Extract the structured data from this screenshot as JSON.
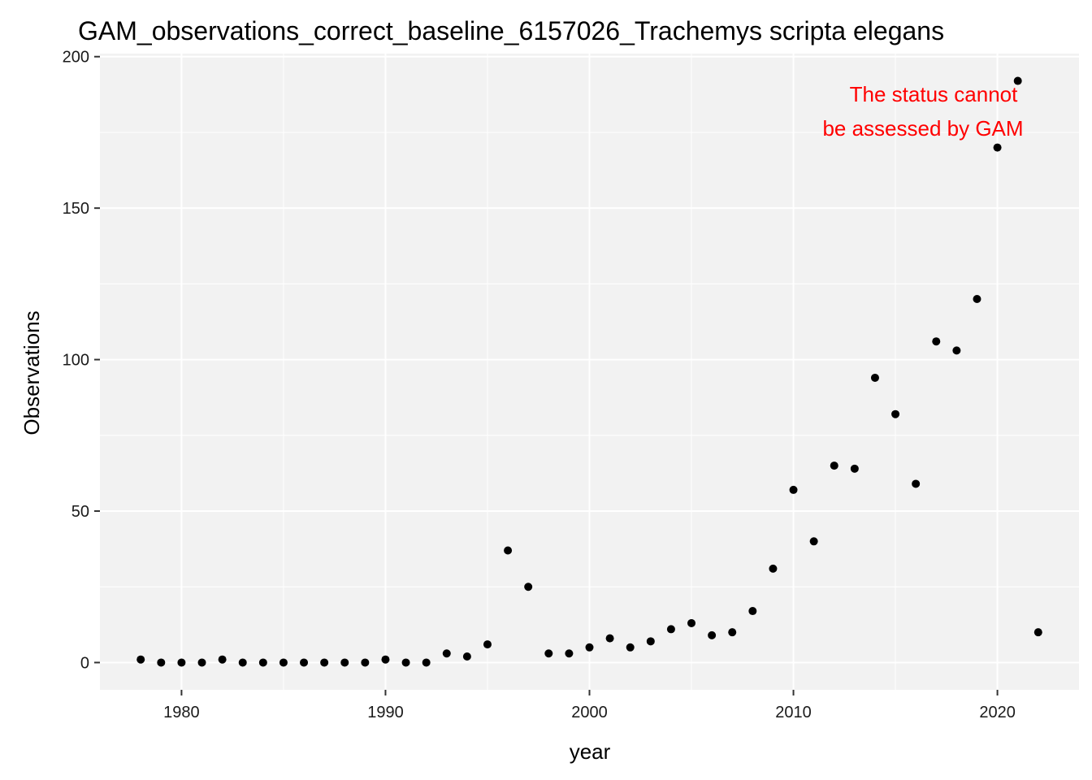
{
  "chart_data": {
    "type": "scatter",
    "title": "GAM_observations_correct_baseline_6157026_Trachemys scripta elegans",
    "xlabel": "year",
    "ylabel": "Observations",
    "xlim": [
      1976,
      2024
    ],
    "ylim": [
      -9,
      201
    ],
    "x_ticks": [
      1980,
      1990,
      2000,
      2010,
      2020
    ],
    "y_ticks": [
      0,
      50,
      100,
      150,
      200
    ],
    "x_tick_labels": [
      "1980",
      "1990",
      "2000",
      "2010",
      "2020"
    ],
    "y_tick_labels": [
      "0",
      "50",
      "100",
      "150",
      "200"
    ],
    "grid": true,
    "panel_background": "#f2f2f2",
    "grid_color": "#ffffff",
    "point_color": "#000000",
    "annotation": {
      "lines": [
        "The status cannot",
        "be assessed by GAM"
      ],
      "color": "#ff0000"
    },
    "points": {
      "x": [
        1978,
        1979,
        1980,
        1981,
        1982,
        1983,
        1984,
        1985,
        1986,
        1987,
        1988,
        1989,
        1990,
        1991,
        1992,
        1993,
        1994,
        1995,
        1996,
        1997,
        1998,
        1999,
        2000,
        2001,
        2002,
        2003,
        2004,
        2005,
        2006,
        2007,
        2008,
        2009,
        2010,
        2011,
        2012,
        2013,
        2014,
        2015,
        2016,
        2017,
        2018,
        2019,
        2020,
        2021,
        2022
      ],
      "y": [
        1,
        0,
        0,
        0,
        1,
        0,
        0,
        0,
        0,
        0,
        0,
        0,
        1,
        0,
        0,
        3,
        2,
        6,
        37,
        25,
        3,
        3,
        5,
        8,
        5,
        7,
        11,
        13,
        9,
        10,
        17,
        31,
        57,
        40,
        65,
        64,
        94,
        82,
        59,
        106,
        103,
        120,
        170,
        192,
        10
      ]
    }
  }
}
